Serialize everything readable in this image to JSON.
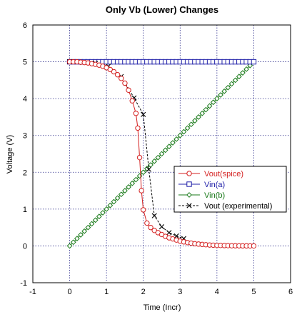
{
  "chart_data": {
    "type": "line",
    "title": "Only Vb (Lower) Changes",
    "xlabel": "Time (Incr)",
    "ylabel": "Voltage (V)",
    "xlim": [
      -1,
      6
    ],
    "ylim": [
      -1,
      6
    ],
    "xticks": [
      "-1",
      "0",
      "1",
      "2",
      "3",
      "4",
      "5",
      "6"
    ],
    "yticks": [
      "-1",
      "0",
      "1",
      "2",
      "3",
      "4",
      "5",
      "6"
    ],
    "grid": true,
    "legend_position": "lower-right",
    "series": [
      {
        "name": "Vout(spice)",
        "color": "#d42020",
        "marker": "circle",
        "dash": "solid",
        "x": [
          0,
          0.1,
          0.2,
          0.3,
          0.4,
          0.5,
          0.6,
          0.7,
          0.8,
          0.9,
          1.0,
          1.1,
          1.2,
          1.3,
          1.4,
          1.5,
          1.6,
          1.7,
          1.8,
          1.85,
          1.9,
          1.95,
          2.0,
          2.1,
          2.2,
          2.3,
          2.4,
          2.5,
          2.6,
          2.7,
          2.8,
          2.9,
          3.0,
          3.1,
          3.2,
          3.3,
          3.4,
          3.5,
          3.6,
          3.7,
          3.8,
          3.9,
          4.0,
          4.1,
          4.2,
          4.3,
          4.4,
          4.5,
          4.6,
          4.7,
          4.8,
          4.9,
          5.0
        ],
        "y": [
          5.0,
          5.0,
          5.0,
          4.99,
          4.98,
          4.97,
          4.95,
          4.93,
          4.91,
          4.88,
          4.84,
          4.79,
          4.73,
          4.65,
          4.55,
          4.42,
          4.23,
          3.94,
          3.6,
          3.2,
          2.4,
          1.5,
          0.98,
          0.62,
          0.5,
          0.42,
          0.36,
          0.31,
          0.26,
          0.22,
          0.19,
          0.16,
          0.13,
          0.11,
          0.09,
          0.075,
          0.06,
          0.05,
          0.04,
          0.032,
          0.025,
          0.02,
          0.015,
          0.012,
          0.009,
          0.007,
          0.005,
          0.004,
          0.003,
          0.002,
          0.001,
          0.0,
          0.0
        ]
      },
      {
        "name": "Vin(a)",
        "color": "#1f1fa8",
        "marker": "square",
        "dash": "solid",
        "x": [
          0,
          0.1,
          0.2,
          0.3,
          0.4,
          0.5,
          0.6,
          0.7,
          0.8,
          0.9,
          1.0,
          1.1,
          1.2,
          1.3,
          1.4,
          1.5,
          1.6,
          1.7,
          1.8,
          1.9,
          2.0,
          2.1,
          2.2,
          2.3,
          2.4,
          2.5,
          2.6,
          2.7,
          2.8,
          2.9,
          3.0,
          3.1,
          3.2,
          3.3,
          3.4,
          3.5,
          3.6,
          3.7,
          3.8,
          3.9,
          4.0,
          4.1,
          4.2,
          4.3,
          4.4,
          4.5,
          4.6,
          4.7,
          4.8,
          4.9,
          5.0
        ],
        "y": [
          5,
          5,
          5,
          5,
          5,
          5,
          5,
          5,
          5,
          5,
          5,
          5,
          5,
          5,
          5,
          5,
          5,
          5,
          5,
          5,
          5,
          5,
          5,
          5,
          5,
          5,
          5,
          5,
          5,
          5,
          5,
          5,
          5,
          5,
          5,
          5,
          5,
          5,
          5,
          5,
          5,
          5,
          5,
          5,
          5,
          5,
          5,
          5,
          5,
          5,
          5
        ]
      },
      {
        "name": "Vin(b)",
        "color": "#1a7a1a",
        "marker": "diamond",
        "dash": "solid",
        "x": [
          0,
          0.1,
          0.2,
          0.3,
          0.4,
          0.5,
          0.6,
          0.7,
          0.8,
          0.9,
          1.0,
          1.1,
          1.2,
          1.3,
          1.4,
          1.5,
          1.6,
          1.7,
          1.8,
          1.9,
          2.0,
          2.1,
          2.2,
          2.3,
          2.4,
          2.5,
          2.6,
          2.7,
          2.8,
          2.9,
          3.0,
          3.1,
          3.2,
          3.3,
          3.4,
          3.5,
          3.6,
          3.7,
          3.8,
          3.9,
          4.0,
          4.1,
          4.2,
          4.3,
          4.4,
          4.5,
          4.6,
          4.7,
          4.8,
          4.9,
          5.0
        ],
        "y": [
          0,
          0.1,
          0.2,
          0.3,
          0.4,
          0.5,
          0.6,
          0.7,
          0.8,
          0.9,
          1.0,
          1.1,
          1.2,
          1.3,
          1.4,
          1.5,
          1.6,
          1.7,
          1.8,
          1.9,
          2.0,
          2.1,
          2.2,
          2.3,
          2.4,
          2.5,
          2.6,
          2.7,
          2.8,
          2.9,
          3.0,
          3.1,
          3.2,
          3.3,
          3.4,
          3.5,
          3.6,
          3.7,
          3.8,
          3.9,
          4.0,
          4.1,
          4.2,
          4.3,
          4.4,
          4.5,
          4.6,
          4.7,
          4.8,
          4.9,
          5.0
        ]
      },
      {
        "name": "Vout (experimental)",
        "color": "#000000",
        "marker": "x",
        "dash": "dashed",
        "x": [
          0.0,
          0.35,
          0.7,
          1.05,
          1.4,
          1.75,
          2.0,
          2.15,
          2.3,
          2.5,
          2.7,
          2.9,
          3.1
        ],
        "y": [
          5.0,
          4.98,
          4.96,
          4.88,
          4.6,
          4.02,
          3.57,
          2.08,
          0.82,
          0.52,
          0.36,
          0.27,
          0.2
        ]
      }
    ]
  }
}
